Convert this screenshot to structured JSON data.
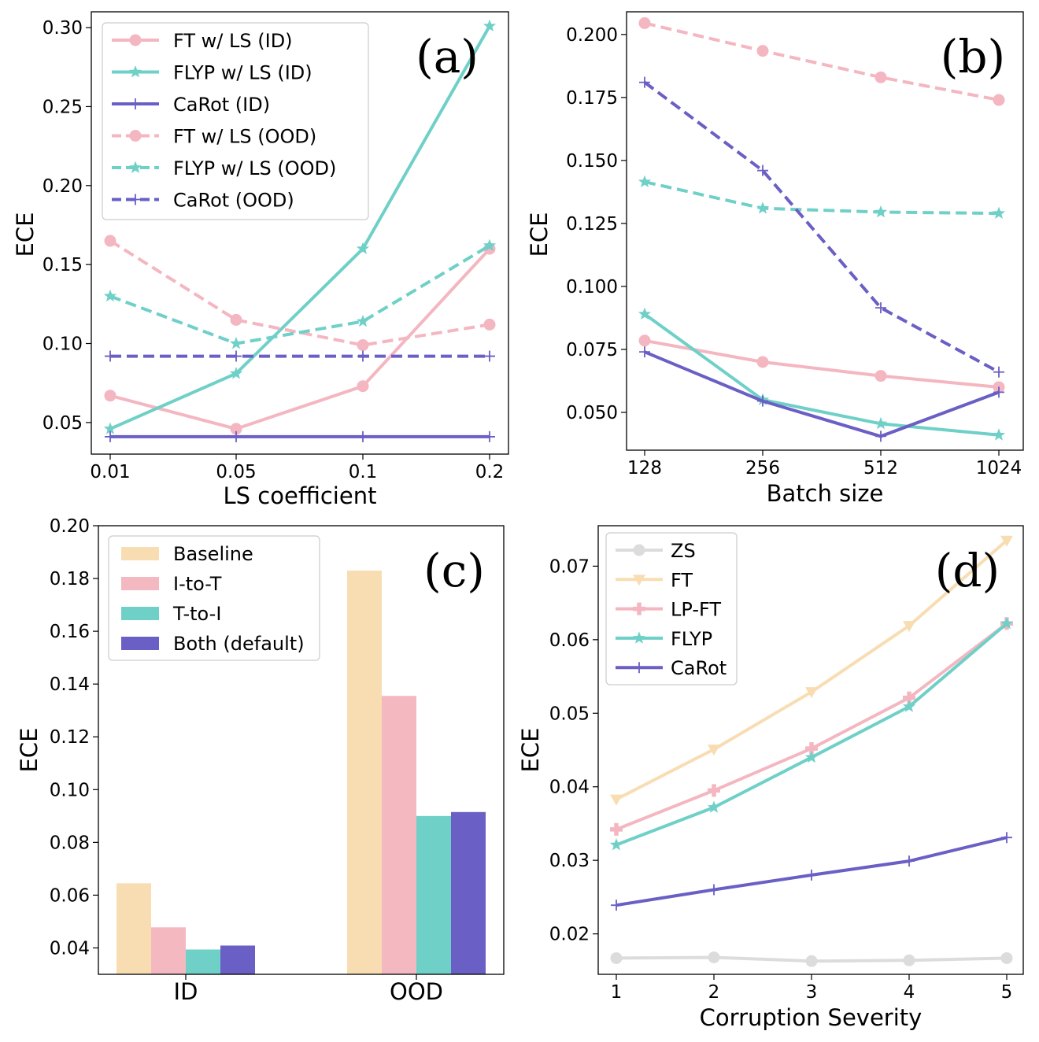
{
  "chart_data": [
    {
      "panel": "(a)",
      "type": "line",
      "x_categories": [
        "0.01",
        "0.05",
        "0.1",
        "0.2"
      ],
      "xlabel": "LS coefficient",
      "ylabel": "ECE",
      "ylim": [
        0.03,
        0.31
      ],
      "yticks": [
        0.05,
        0.1,
        0.15,
        0.2,
        0.25,
        0.3
      ],
      "ytick_labels": [
        "0.05",
        "0.10",
        "0.15",
        "0.20",
        "0.25",
        "0.30"
      ],
      "legend_position": "top-left",
      "series": [
        {
          "name": "FT w/ LS (ID)",
          "color": "#f4b6c0",
          "dash": "solid",
          "marker": "circle",
          "values": [
            0.067,
            0.046,
            0.073,
            0.16
          ]
        },
        {
          "name": "FLYP w/ LS (ID)",
          "color": "#6fd0c8",
          "dash": "solid",
          "marker": "star",
          "values": [
            0.046,
            0.081,
            0.16,
            0.301
          ]
        },
        {
          "name": "CaRot (ID)",
          "color": "#6a5fc4",
          "dash": "solid",
          "marker": "plus",
          "values": [
            0.041,
            0.041,
            0.041,
            0.041
          ]
        },
        {
          "name": "FT w/ LS (OOD)",
          "color": "#f4b6c0",
          "dash": "dashed",
          "marker": "circle",
          "values": [
            0.165,
            0.115,
            0.099,
            0.112
          ]
        },
        {
          "name": "FLYP w/ LS (OOD)",
          "color": "#6fd0c8",
          "dash": "dashed",
          "marker": "star",
          "values": [
            0.13,
            0.1,
            0.114,
            0.162
          ]
        },
        {
          "name": "CaRot (OOD)",
          "color": "#6a5fc4",
          "dash": "dashed",
          "marker": "plus",
          "values": [
            0.092,
            0.092,
            0.092,
            0.092
          ]
        }
      ]
    },
    {
      "panel": "(b)",
      "type": "line",
      "x_categories": [
        "128",
        "256",
        "512",
        "1024"
      ],
      "xlabel": "Batch size",
      "ylabel": "ECE",
      "ylim": [
        0.035,
        0.209
      ],
      "yticks": [
        0.05,
        0.075,
        0.1,
        0.125,
        0.15,
        0.175,
        0.2
      ],
      "ytick_labels": [
        "0.050",
        "0.075",
        "0.100",
        "0.125",
        "0.150",
        "0.175",
        "0.200"
      ],
      "series": [
        {
          "name": "FT w/ LS (ID)",
          "color": "#f4b6c0",
          "dash": "solid",
          "marker": "circle",
          "values": [
            0.0785,
            0.07,
            0.0645,
            0.06
          ]
        },
        {
          "name": "FLYP w/ LS (ID)",
          "color": "#6fd0c8",
          "dash": "solid",
          "marker": "star",
          "values": [
            0.089,
            0.055,
            0.0455,
            0.041
          ]
        },
        {
          "name": "CaRot (ID)",
          "color": "#6a5fc4",
          "dash": "solid",
          "marker": "plus",
          "values": [
            0.074,
            0.0545,
            0.0405,
            0.058
          ]
        },
        {
          "name": "FT w/ LS (OOD)",
          "color": "#f4b6c0",
          "dash": "dashed",
          "marker": "circle",
          "values": [
            0.2045,
            0.1935,
            0.183,
            0.174
          ]
        },
        {
          "name": "FLYP w/ LS (OOD)",
          "color": "#6fd0c8",
          "dash": "dashed",
          "marker": "star",
          "values": [
            0.1415,
            0.131,
            0.1295,
            0.129
          ]
        },
        {
          "name": "CaRot (OOD)",
          "color": "#6a5fc4",
          "dash": "dashed",
          "marker": "plus",
          "values": [
            0.181,
            0.146,
            0.0915,
            0.066
          ]
        }
      ]
    },
    {
      "panel": "(c)",
      "type": "bar",
      "categories": [
        "ID",
        "OOD"
      ],
      "xlabel": "",
      "ylabel": "ECE",
      "ylim": [
        0.03,
        0.2
      ],
      "yticks": [
        0.04,
        0.06,
        0.08,
        0.1,
        0.12,
        0.14,
        0.16,
        0.18,
        0.2
      ],
      "ytick_labels": [
        "0.04",
        "0.06",
        "0.08",
        "0.10",
        "0.12",
        "0.14",
        "0.16",
        "0.18",
        "0.20"
      ],
      "legend_position": "top-left",
      "series": [
        {
          "name": "Baseline",
          "color": "#f8ddb3",
          "values": [
            0.0645,
            0.183
          ]
        },
        {
          "name": "I-to-T",
          "color": "#f4b8c1",
          "values": [
            0.0478,
            0.1355
          ]
        },
        {
          "name": "T-to-I",
          "color": "#6fd0c8",
          "values": [
            0.0394,
            0.09
          ]
        },
        {
          "name": "Both (default)",
          "color": "#6a5fc4",
          "values": [
            0.0409,
            0.0915
          ]
        }
      ]
    },
    {
      "panel": "(d)",
      "type": "line",
      "x_categories": [
        "1",
        "2",
        "3",
        "4",
        "5"
      ],
      "xlabel": "Corruption Severity",
      "ylabel": "ECE",
      "ylim": [
        0.0145,
        0.0755
      ],
      "yticks": [
        0.02,
        0.03,
        0.04,
        0.05,
        0.06,
        0.07
      ],
      "ytick_labels": [
        "0.02",
        "0.03",
        "0.04",
        "0.05",
        "0.06",
        "0.07"
      ],
      "legend_position": "top-left",
      "series": [
        {
          "name": "ZS",
          "color": "#dcdcdc",
          "dash": "solid",
          "marker": "circle",
          "values": [
            0.0167,
            0.0168,
            0.0163,
            0.0164,
            0.0167
          ]
        },
        {
          "name": "FT",
          "color": "#f8ddb3",
          "dash": "solid",
          "marker": "triangle-down",
          "values": [
            0.0383,
            0.0451,
            0.0529,
            0.0619,
            0.0735
          ]
        },
        {
          "name": "LP-FT",
          "color": "#f4b6c0",
          "dash": "solid",
          "marker": "plus-bold",
          "values": [
            0.0342,
            0.0395,
            0.0452,
            0.0521,
            0.0622
          ]
        },
        {
          "name": "FLYP",
          "color": "#6fd0c8",
          "dash": "solid",
          "marker": "star",
          "values": [
            0.0321,
            0.0372,
            0.044,
            0.0509,
            0.0622
          ]
        },
        {
          "name": "CaRot",
          "color": "#6a5fc4",
          "dash": "solid",
          "marker": "plus",
          "values": [
            0.0239,
            0.026,
            0.028,
            0.0299,
            0.0331
          ]
        }
      ]
    }
  ]
}
